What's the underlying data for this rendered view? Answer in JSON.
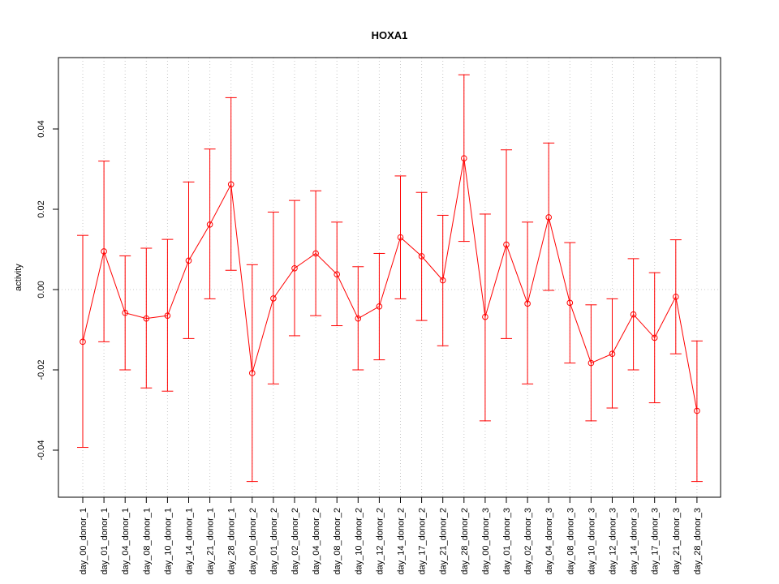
{
  "chart_data": {
    "type": "line",
    "title": "HOXA1",
    "xlabel": "",
    "ylabel": "activity",
    "grid": true,
    "ylim": [
      -0.052,
      0.058
    ],
    "y_ticks": [
      -0.04,
      -0.02,
      0.0,
      0.02,
      0.04
    ],
    "y_tick_labels": [
      "-0.04",
      "-0.02",
      "0.00",
      "0.02",
      "0.04"
    ],
    "colors": {
      "series": "#ff0000",
      "grid": "#c8c8c8",
      "axis": "#000000"
    },
    "categories": [
      "day_00_donor_1",
      "day_01_donor_1",
      "day_04_donor_1",
      "day_08_donor_1",
      "day_10_donor_1",
      "day_14_donor_1",
      "day_21_donor_1",
      "day_28_donor_1",
      "day_00_donor_2",
      "day_01_donor_2",
      "day_02_donor_2",
      "day_04_donor_2",
      "day_08_donor_2",
      "day_10_donor_2",
      "day_12_donor_2",
      "day_14_donor_2",
      "day_17_donor_2",
      "day_21_donor_2",
      "day_28_donor_2",
      "day_00_donor_3",
      "day_01_donor_3",
      "day_02_donor_3",
      "day_04_donor_3",
      "day_08_donor_3",
      "day_10_donor_3",
      "day_12_donor_3",
      "day_14_donor_3",
      "day_17_donor_3",
      "day_21_donor_3",
      "day_28_donor_3"
    ],
    "values": [
      -0.013,
      0.0095,
      -0.0058,
      -0.0072,
      -0.0065,
      0.0072,
      0.0162,
      0.0262,
      -0.0208,
      -0.0022,
      0.0053,
      0.009,
      0.0038,
      -0.0072,
      -0.0042,
      0.013,
      0.0083,
      0.0023,
      0.0327,
      -0.0068,
      0.0112,
      -0.0035,
      0.018,
      -0.0033,
      -0.0183,
      -0.016,
      -0.0062,
      -0.012,
      -0.0018,
      -0.0302
    ],
    "upper": [
      0.0135,
      0.032,
      0.0084,
      0.0103,
      0.0125,
      0.0268,
      0.035,
      0.0478,
      0.0062,
      0.0193,
      0.0222,
      0.0246,
      0.0168,
      0.0057,
      0.009,
      0.0283,
      0.0242,
      0.0185,
      0.0535,
      0.0188,
      0.0348,
      0.0168,
      0.0365,
      0.0117,
      -0.0038,
      -0.0023,
      0.0077,
      0.0042,
      0.0124,
      -0.0128
    ],
    "lower": [
      -0.0393,
      -0.013,
      -0.02,
      -0.0245,
      -0.0253,
      -0.0122,
      -0.0023,
      0.0048,
      -0.0478,
      -0.0235,
      -0.0115,
      -0.0065,
      -0.009,
      -0.02,
      -0.0175,
      -0.0023,
      -0.0077,
      -0.014,
      0.012,
      -0.0327,
      -0.0122,
      -0.0235,
      -0.0002,
      -0.0183,
      -0.0327,
      -0.0295,
      -0.02,
      -0.0282,
      -0.016,
      -0.0478
    ]
  }
}
